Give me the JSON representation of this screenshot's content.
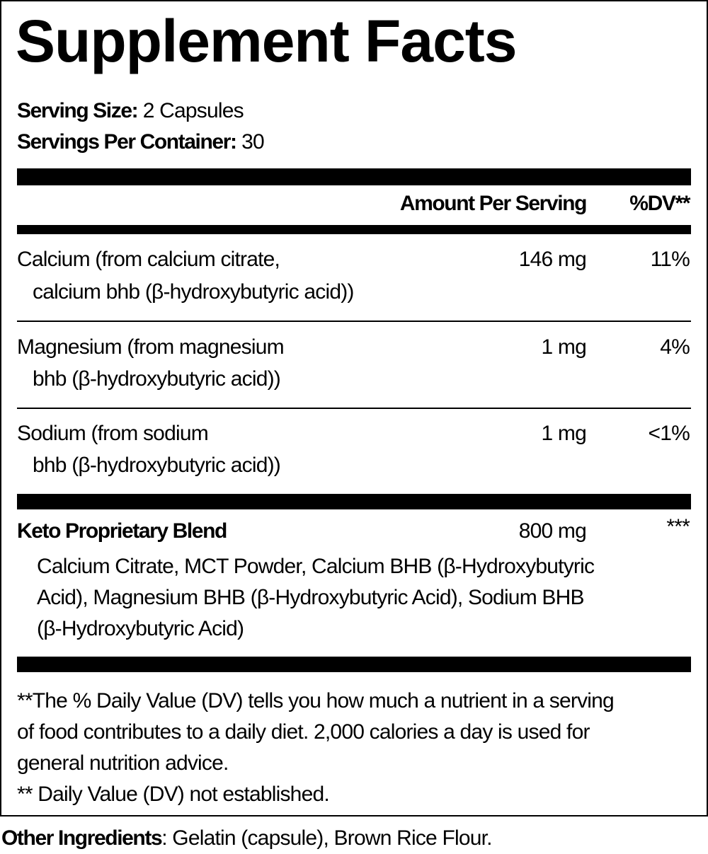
{
  "title": "Supplement Facts",
  "serving_size": {
    "label": "Serving Size:",
    "value": "2 Capsules"
  },
  "servings_per_container": {
    "label": "Servings Per Container:",
    "value": "30"
  },
  "header": {
    "amount": "Amount Per Serving",
    "dv": "%DV**"
  },
  "nutrients": [
    {
      "line1": "Calcium (from calcium citrate,",
      "line2": "calcium bhb (β-hydroxybutyric acid))",
      "amount": "146 mg",
      "dv": "11%"
    },
    {
      "line1": "Magnesium (from magnesium",
      "line2": "bhb (β-hydroxybutyric acid))",
      "amount": "1 mg",
      "dv": "4%"
    },
    {
      "line1": "Sodium (from sodium",
      "line2": "bhb (β-hydroxybutyric acid))",
      "amount": "1 mg",
      "dv": "<1%"
    }
  ],
  "blend": {
    "name": "Keto Proprietary Blend",
    "amount": "800 mg",
    "dv": "***",
    "lines": [
      "Calcium Citrate, MCT Powder, Calcium BHB (β-Hydroxybutyric",
      "Acid), Magnesium BHB (β-Hydroxybutyric Acid), Sodium BHB",
      "(β-Hydroxybutyric Acid)"
    ]
  },
  "footnotes": [
    "**The % Daily Value (DV) tells you how much a nutrient in a serving",
    "of food contributes to a daily diet. 2,000 calories a day is used for",
    "general nutrition advice.",
    "** Daily Value (DV) not established."
  ],
  "other_ingredients": {
    "label": "Other Ingredients",
    "value": ": Gelatin (capsule), Brown Rice Flour."
  }
}
